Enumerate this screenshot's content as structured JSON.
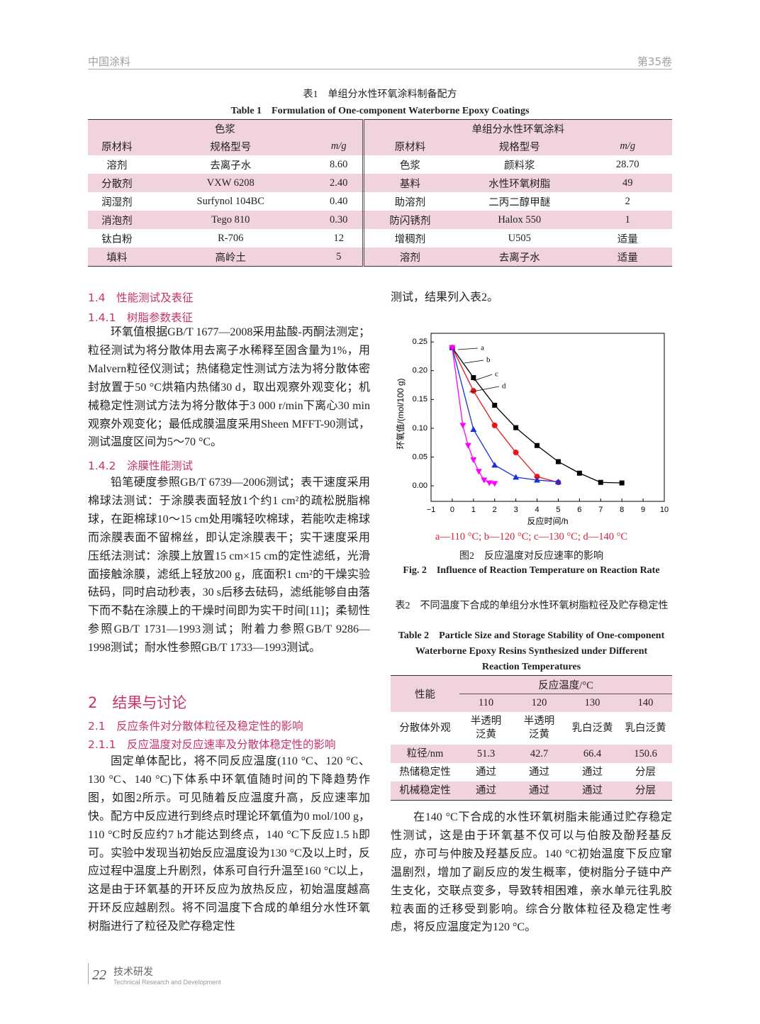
{
  "header": {
    "journal": "中国涂料",
    "volume": "第35卷"
  },
  "table1": {
    "caption_cn": "表1　单组分水性环氧涂料制备配方",
    "caption_en": "Table 1　Formulation of One-component Waterborne Epoxy Coatings",
    "groups": [
      "色浆",
      "单组分水性环氧涂料"
    ],
    "columns": [
      "原材料",
      "规格型号",
      "m/g",
      "原材料",
      "规格型号",
      "m/g"
    ],
    "rows": [
      [
        "溶剂",
        "去离子水",
        "8.60",
        "色浆",
        "颜料浆",
        "28.70"
      ],
      [
        "分散剂",
        "VXW 6208",
        "2.40",
        "基料",
        "水性环氧树脂",
        "49"
      ],
      [
        "润湿剂",
        "Surfynol 104BC",
        "0.40",
        "助溶剂",
        "二丙二醇甲醚",
        "2"
      ],
      [
        "消泡剂",
        "Tego 810",
        "0.30",
        "防闪锈剂",
        "Halox 550",
        "1"
      ],
      [
        "钛白粉",
        "R-706",
        "12",
        "增稠剂",
        "U505",
        "适量"
      ],
      [
        "填料",
        "高岭土",
        "5",
        "溶剂",
        "去离子水",
        "适量"
      ]
    ]
  },
  "left": {
    "h1_4": "1.4　性能测试及表征",
    "h1_4_1": "1.4.1　树脂参数表征",
    "p1": "环氧值根据GB/T 1677—2008采用盐酸-丙酮法测定；粒径测试为将分散体用去离子水稀释至固含量为1%，用Malvern粒径仪测试；热储稳定性测试方法为将分散体密封放置于50 °C烘箱内热储30 d，取出观察外观变化；机械稳定性测试方法为将分散体于3 000 r/min下离心30 min观察外观变化；最低成膜温度采用Sheen MFFT-90测试，测试温度区间为5～70 °C。",
    "h1_4_2": "1.4.2　涂膜性能测试",
    "p2": "铅笔硬度参照GB/T 6739—2006测试；表干速度采用棉球法测试：于涂膜表面轻放1个约1 cm²的疏松脱脂棉球，在距棉球10～15 cm处用嘴轻吹棉球，若能吹走棉球而涂膜表面不留棉丝，即认定涂膜表干；实干速度采用压纸法测试：涂膜上放置15 cm×15 cm的定性滤纸，光滑面接触涂膜，滤纸上轻放200 g，底面积1 cm²的干燥实验砝码，同时启动秒表，30 s后移去砝码，滤纸能够自由落下而不黏在涂膜上的干燥时间即为实干时间[11]；柔韧性参照GB/T 1731—1993测试；附着力参照GB/T 9286—1998测试；耐水性参照GB/T 1733—1993测试。",
    "h2": "2　结果与讨论",
    "h2_1": "2.1　反应条件对分散体粒径及稳定性的影响",
    "h2_1_1": "2.1.1　反应温度对反应速率及分散体稳定性的影响",
    "p3": "固定单体配比，将不同反应温度(110 °C、120 °C、130 °C、140 °C)下体系中环氧值随时间的下降趋势作图，如图2所示。可见随着反应温度升高，反应速率加快。配方中反应进行到终点时理论环氧值为0 mol/100 g，110 °C时反应约7 h才能达到终点，140 °C下反应1.5 h即可。实验中发现当初始反应温度设为130 °C及以上时，反应过程中温度上升剧烈，体系可自行升温至160 °C以上，这是由于环氧基的开环反应为放热反应，初始温度越高开环反应越剧烈。将不同温度下合成的单组分水性环氧树脂进行了粒径及贮存稳定性"
  },
  "right": {
    "p0": "测试，结果列入表2。",
    "p4": "在140 °C下合成的水性环氧树脂未能通过贮存稳定性测试，这是由于环氧基不仅可以与伯胺及酚羟基反应，亦可与仲胺及羟基反应。140 °C初始温度下反应窜温剧烈，增加了副反应的发生概率，使树脂分子链中产生支化，交联点变多，导致转相困难，亲水单元往乳胶粒表面的迁移受到影响。综合分散体粒径及稳定性考虑，将反应温度定为120 °C。"
  },
  "figure": {
    "key": "a—110 °C; b—120 °C; c—130 °C; d—140 °C",
    "caption_cn": "图2　反应温度对反应速率的影响",
    "caption_en": "Fig. 2　Influence of Reaction Temperature on Reaction Rate"
  },
  "chart_data": {
    "type": "line",
    "x_label": "反应时间/h",
    "y_label": "环氧值/(mol/100 g)",
    "xlim": [
      -1,
      10
    ],
    "xticks": [
      {
        "value": -1,
        "label": "−1"
      },
      0,
      1,
      2,
      3,
      4,
      5,
      6,
      7,
      8,
      9,
      10
    ],
    "ylim": [
      -0.027,
      0.265
    ],
    "yticks": [
      {
        "value": 0,
        "label": "0.00"
      },
      {
        "value": 0.05,
        "label": "0.05"
      },
      {
        "value": 0.1,
        "label": "0.10"
      },
      {
        "value": 0.15,
        "label": "0.15"
      },
      {
        "value": 0.2,
        "label": "0.20"
      },
      {
        "value": 0.25,
        "label": "0.25"
      }
    ],
    "series": [
      {
        "name": "a",
        "color": "#000000",
        "marker": "square",
        "x": [
          0,
          1,
          2,
          3,
          4,
          5,
          6,
          7,
          8
        ],
        "values": [
          0.24,
          0.188,
          0.14,
          0.101,
          0.07,
          0.042,
          0.022,
          0.006,
          0.005
        ]
      },
      {
        "name": "b",
        "color": "#e8141a",
        "marker": "circle",
        "x": [
          0,
          1,
          2,
          3,
          4,
          5
        ],
        "values": [
          0.24,
          0.165,
          0.105,
          0.058,
          0.016,
          0.006
        ]
      },
      {
        "name": "c",
        "color": "#1a2fd6",
        "marker": "triangle-up",
        "x": [
          0,
          1,
          2,
          3,
          4,
          5
        ],
        "values": [
          0.24,
          0.098,
          0.036,
          0.015,
          0.01,
          0.007
        ]
      },
      {
        "name": "d",
        "color": "#ff00ff",
        "marker": "triangle-down",
        "x": [
          0,
          0.5,
          0.75,
          1,
          1.25,
          1.5,
          1.75,
          2
        ],
        "values": [
          0.24,
          0.105,
          0.07,
          0.045,
          0.025,
          0.01,
          0.005,
          0.004
        ]
      }
    ]
  },
  "table2": {
    "caption_cn": "表2　不同温度下合成的单组分水性环氧树脂粒径及贮存稳定性",
    "caption_en": "Table 2　Particle Size and Storage Stability of One-component Waterborne Epoxy Resins Synthesized under Different Reaction Temperatures",
    "row_header": "性能",
    "group": "反应温度/°C",
    "columns": [
      "110",
      "120",
      "130",
      "140"
    ],
    "rows": [
      [
        "分散体外观",
        "半透明\n泛黄",
        "半透明\n泛黄",
        "乳白泛黄",
        "乳白泛黄"
      ],
      [
        "粒径/nm",
        "51.3",
        "42.7",
        "66.4",
        "150.6"
      ],
      [
        "热储稳定性",
        "通过",
        "通过",
        "通过",
        "分层"
      ],
      [
        "机械稳定性",
        "通过",
        "通过",
        "通过",
        "分层"
      ]
    ]
  },
  "footer": {
    "page": "22",
    "section_cn": "技术研发",
    "section_en": "Technical Research and Development"
  }
}
